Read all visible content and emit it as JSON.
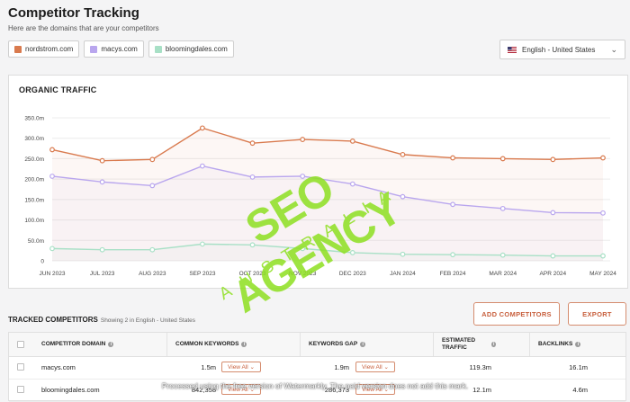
{
  "page": {
    "title": "Competitor Tracking",
    "subtitle": "Here are the domains that are your competitors"
  },
  "competitors": [
    {
      "label": "nordstrom.com",
      "color": "#d97a4e"
    },
    {
      "label": "macys.com",
      "color": "#b9a6ee"
    },
    {
      "label": "bloomingdales.com",
      "color": "#a8e0c6"
    }
  ],
  "language": {
    "flag_icon": "us-flag-icon",
    "selected": "English - United States"
  },
  "organic": {
    "title": "ORGANIC TRAFFIC"
  },
  "chart_data": {
    "type": "line",
    "categories": [
      "JUN 2023",
      "JUL 2023",
      "AUG 2023",
      "SEP 2023",
      "OCT 2023",
      "NOV 2023",
      "DEC 2023",
      "JAN 2024",
      "FEB 2024",
      "MAR 2024",
      "APR 2024",
      "MAY 2024"
    ],
    "y_ticks": [
      "350.0m",
      "300.0m",
      "250.0m",
      "200.0m",
      "150.0m",
      "100.0m",
      "50.0m",
      "0"
    ],
    "ylim": [
      0,
      350
    ],
    "grid": true,
    "legend": "none",
    "series": [
      {
        "color": "#d97a4e",
        "values": [
          272,
          245,
          248,
          325,
          288,
          297,
          293,
          260,
          252,
          250,
          248,
          252
        ]
      },
      {
        "color": "#b9a6ee",
        "values": [
          207,
          193,
          184,
          232,
          205,
          207,
          188,
          157,
          138,
          128,
          118,
          117
        ]
      },
      {
        "color": "#a8e0c6",
        "values": [
          30,
          27,
          27,
          41,
          39,
          30,
          20,
          16,
          15,
          14,
          12,
          12
        ]
      }
    ]
  },
  "tracked": {
    "title": "TRACKED COMPETITORS",
    "subtitle": "Showing 2 in English - United States",
    "add_button": "ADD COMPETITORS",
    "export_button": "EXPORT"
  },
  "table": {
    "headers": {
      "domain": "COMPETITOR DOMAIN",
      "common": "COMMON KEYWORDS",
      "gap": "KEYWORDS GAP",
      "traffic": "ESTIMATED TRAFFIC",
      "backlinks": "BACKLINKS"
    },
    "view_all": "View All",
    "rows": [
      {
        "domain": "macys.com",
        "common": "1.5m",
        "gap": "1.9m",
        "traffic": "119.3m",
        "backlinks": "16.1m"
      },
      {
        "domain": "bloomingdales.com",
        "common": "842,358",
        "gap": "286,373",
        "traffic": "12.1m",
        "backlinks": "4.6m"
      }
    ]
  },
  "watermark": {
    "main": "SEO AGENCY",
    "sub": "AUSTRALIA"
  },
  "overlay_text": "Processed using the free version of Watermarkly. The paid version does not add this mark."
}
